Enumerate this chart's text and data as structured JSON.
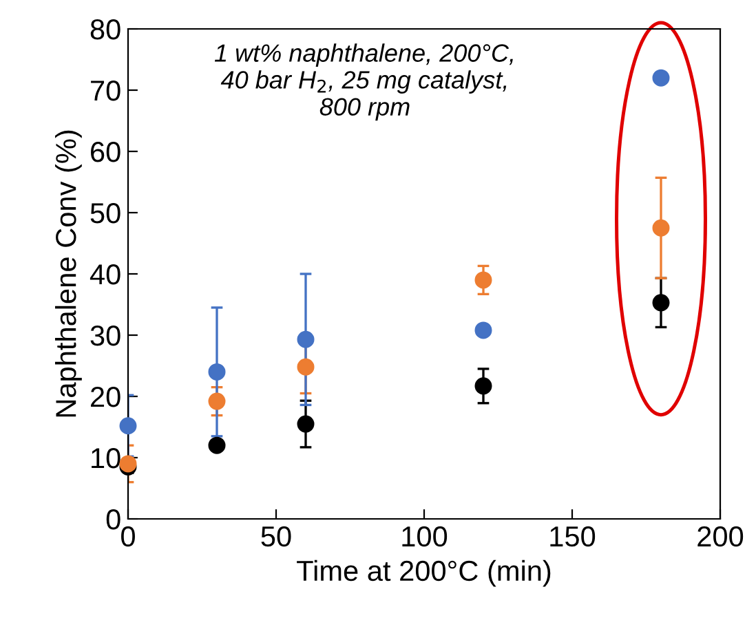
{
  "chart_data": {
    "type": "scatter",
    "xlabel": "Time at 200°C (min)",
    "ylabel": "Naphthalene Conv (%)",
    "annotations": [
      "1 wt% naphthalene, 200°C,\n40 bar H$_{2}$, 25 mg catalyst,\n800 rpm"
    ],
    "xlim": [
      0,
      200
    ],
    "xticks": [
      0,
      50,
      100,
      150,
      200
    ],
    "ylim": [
      0,
      80
    ],
    "yticks": [
      0,
      10,
      20,
      30,
      40,
      50,
      60,
      70,
      80
    ],
    "grid": false,
    "legend": false,
    "marker": "circle",
    "series": [
      {
        "color": "#000000",
        "x": [
          0,
          30,
          60,
          120,
          180
        ],
        "values": [
          8.5,
          12,
          15.5,
          21.7,
          35.3
        ],
        "errors": [
          1,
          null,
          3.8,
          2.8,
          4
        ]
      },
      {
        "color": "#ed7d31",
        "x": [
          0,
          30,
          60,
          120,
          180
        ],
        "values": [
          9,
          19.2,
          24.8,
          39,
          47.5
        ],
        "errors": [
          3,
          2.3,
          4.3,
          2.3,
          8.2
        ]
      },
      {
        "color": "#4472c4",
        "x": [
          0,
          30,
          60,
          120,
          180
        ],
        "values": [
          15.2,
          24,
          29.3,
          30.8,
          72
        ],
        "errors": [
          5,
          10.5,
          10.7,
          null,
          null
        ]
      }
    ]
  }
}
